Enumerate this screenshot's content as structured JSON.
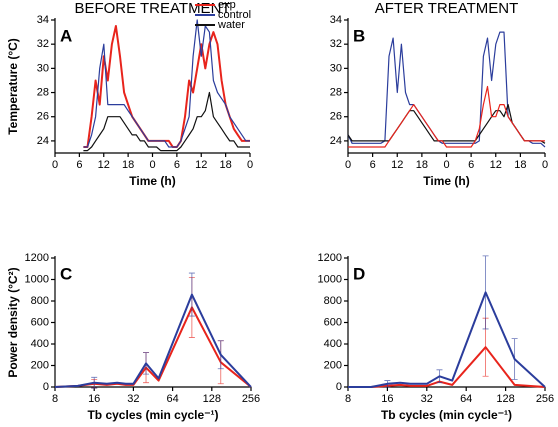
{
  "chart_data": [
    {
      "type": "line",
      "title": "BEFORE TREATMENT",
      "panel_label": "A",
      "ylabel": "Temperature (°C)",
      "xlabel": "Time (h)",
      "x": [
        7,
        8,
        9,
        10,
        11,
        12,
        13,
        14,
        15,
        16,
        17,
        18,
        19,
        20,
        21,
        22,
        23,
        24,
        25,
        26,
        27,
        28,
        29,
        30,
        31,
        32,
        33,
        34,
        35,
        36,
        37,
        38,
        39,
        40,
        41,
        42,
        43,
        44,
        45,
        46,
        47,
        48
      ],
      "series": [
        {
          "name": "exp",
          "color": "#e8241c",
          "values": [
            23.5,
            23.5,
            26,
            29,
            27,
            31,
            29,
            32,
            33.5,
            31,
            28,
            27,
            26,
            25.5,
            25,
            24.5,
            24,
            24,
            24,
            24,
            24,
            24,
            23.5,
            23.5,
            24,
            26,
            29,
            28,
            30,
            32,
            30,
            32,
            33,
            32,
            29,
            27,
            26,
            25,
            24.5,
            24,
            24,
            24
          ]
        },
        {
          "name": "control",
          "color": "#2b3d9c",
          "values": [
            23.5,
            23.5,
            24.5,
            26,
            30,
            32,
            27,
            27,
            27,
            27,
            27,
            26.5,
            26,
            25.5,
            25,
            24.5,
            24,
            24,
            24,
            24,
            24,
            23.5,
            23.5,
            23.5,
            24,
            25,
            26,
            31,
            34,
            31,
            33.5,
            33,
            29,
            28,
            27.5,
            27,
            26,
            25.5,
            25,
            24.5,
            24,
            24
          ]
        },
        {
          "name": "water",
          "color": "#111111",
          "values": [
            23.2,
            23.2,
            23.5,
            24,
            24.5,
            25,
            26,
            26,
            26,
            26,
            25.5,
            25,
            24.5,
            24.5,
            24,
            24,
            23.5,
            23.5,
            23.5,
            23.2,
            23.2,
            23.2,
            23.2,
            23.2,
            23.5,
            24,
            24.5,
            25,
            26,
            26,
            26.5,
            28,
            26,
            25.5,
            25,
            24.5,
            24,
            24,
            23.5,
            23.5,
            23.5,
            23.5
          ]
        }
      ],
      "xlim": [
        0,
        48
      ],
      "xticks": [
        0,
        6,
        12,
        18,
        {
          "value": 24,
          "label": "0"
        },
        {
          "value": 30,
          "label": "6"
        },
        {
          "value": 36,
          "label": "12"
        },
        {
          "value": 42,
          "label": "18"
        },
        {
          "value": 48,
          "label": "0"
        }
      ],
      "ylim": [
        23,
        34
      ],
      "yticks": [
        24,
        26,
        28,
        30,
        32,
        34
      ],
      "legend": "upper right"
    },
    {
      "type": "line",
      "title": "AFTER TREATMENT",
      "panel_label": "B",
      "xlabel": "Time (h)",
      "x": [
        0,
        1,
        2,
        3,
        4,
        5,
        6,
        7,
        8,
        9,
        10,
        11,
        12,
        13,
        14,
        15,
        16,
        17,
        18,
        19,
        20,
        21,
        22,
        23,
        24,
        25,
        26,
        27,
        28,
        29,
        30,
        31,
        32,
        33,
        34,
        35,
        36,
        37,
        38,
        39,
        40,
        41,
        42,
        43,
        44,
        45,
        46,
        47,
        48
      ],
      "series": [
        {
          "color": "#2b3d9c",
          "values": [
            24.5,
            23.8,
            23.8,
            23.8,
            23.8,
            23.8,
            23.8,
            23.8,
            23.8,
            24,
            31,
            32.5,
            28,
            32,
            28,
            27,
            27,
            26.5,
            26,
            25.5,
            25,
            24.5,
            24,
            23.8,
            23.8,
            23.8,
            23.8,
            23.8,
            23.8,
            23.8,
            23.8,
            23.8,
            24,
            31,
            32.5,
            29,
            32,
            33,
            33,
            26,
            25.5,
            25,
            24.5,
            24,
            24,
            23.8,
            23.8,
            23.8,
            23.5
          ]
        },
        {
          "color": "#111111",
          "values": [
            24.5,
            24,
            24,
            24,
            24,
            24,
            24,
            24,
            24,
            24,
            24,
            24.5,
            25,
            25.5,
            26,
            26.5,
            26.5,
            26,
            25.5,
            25,
            24.5,
            24,
            24,
            24,
            24,
            24,
            24,
            24,
            24,
            24,
            24,
            24,
            24.5,
            25,
            25.5,
            26,
            26.5,
            26.5,
            26,
            27,
            25.5,
            25,
            24.5,
            24,
            24,
            24,
            24,
            24,
            23.8
          ]
        },
        {
          "color": "#e8241c",
          "values": [
            23.5,
            23.5,
            23.5,
            23.5,
            23.5,
            23.5,
            23.5,
            23.5,
            23.5,
            23.5,
            24,
            24.5,
            25,
            25.5,
            26,
            26.5,
            27,
            26.5,
            26,
            25.5,
            25,
            24.5,
            24,
            24,
            23.5,
            23.5,
            23.5,
            23.5,
            23.5,
            23.5,
            23.5,
            24,
            25,
            27,
            28.5,
            26,
            26,
            27,
            27,
            26,
            25.5,
            25,
            24.5,
            24,
            24,
            24,
            24,
            24,
            24
          ]
        }
      ],
      "xlim": [
        0,
        48
      ],
      "xticks": [
        0,
        6,
        12,
        18,
        {
          "value": 24,
          "label": "0"
        },
        {
          "value": 30,
          "label": "6"
        },
        {
          "value": 36,
          "label": "12"
        },
        {
          "value": 42,
          "label": "18"
        },
        {
          "value": 48,
          "label": "0"
        }
      ],
      "ylim": [
        23,
        34
      ],
      "yticks": [
        24,
        26,
        28,
        30,
        32,
        34
      ]
    },
    {
      "type": "errorline",
      "panel_label": "C",
      "ylabel": "Power density (°C²)",
      "xlabel": "Tb cycles (min cycle⁻¹)",
      "x": [
        8,
        12,
        16,
        20,
        24,
        28,
        32,
        40,
        50,
        90,
        150,
        256
      ],
      "xscale": "log",
      "series": [
        {
          "color": "#e8241c",
          "values": [
            0,
            10,
            30,
            20,
            30,
            20,
            20,
            180,
            60,
            740,
            230,
            0
          ],
          "errors": [
            null,
            null,
            40,
            null,
            null,
            null,
            null,
            140,
            null,
            280,
            200,
            null
          ]
        },
        {
          "color": "#2b3d9c",
          "values": [
            0,
            10,
            40,
            30,
            40,
            30,
            30,
            220,
            80,
            860,
            300,
            0
          ],
          "errors": [
            null,
            null,
            50,
            null,
            null,
            null,
            null,
            100,
            null,
            200,
            130,
            null
          ]
        }
      ],
      "xlim": [
        8,
        256
      ],
      "xticks": [
        8,
        16,
        32,
        64,
        128,
        256
      ],
      "ylim": [
        0,
        1200
      ],
      "yticks": [
        0,
        200,
        400,
        600,
        800,
        1000,
        1200
      ]
    },
    {
      "type": "errorline",
      "panel_label": "D",
      "xlabel": "Tb cycles (min cycle⁻¹)",
      "x": [
        8,
        12,
        16,
        20,
        24,
        28,
        32,
        40,
        50,
        90,
        150,
        256
      ],
      "xscale": "log",
      "series": [
        {
          "color": "#e8241c",
          "values": [
            0,
            0,
            10,
            20,
            10,
            10,
            10,
            50,
            20,
            370,
            20,
            0
          ],
          "errors": [
            null,
            null,
            null,
            null,
            null,
            null,
            null,
            null,
            null,
            270,
            null,
            null
          ]
        },
        {
          "color": "#2b3d9c",
          "values": [
            0,
            0,
            30,
            40,
            30,
            30,
            30,
            100,
            60,
            880,
            260,
            0
          ],
          "errors": [
            null,
            null,
            30,
            null,
            null,
            null,
            null,
            60,
            null,
            340,
            190,
            null
          ]
        }
      ],
      "xlim": [
        8,
        256
      ],
      "xticks": [
        8,
        16,
        32,
        64,
        128,
        256
      ],
      "ylim": [
        0,
        1200
      ],
      "yticks": [
        0,
        200,
        400,
        600,
        800,
        1000,
        1200
      ]
    }
  ]
}
